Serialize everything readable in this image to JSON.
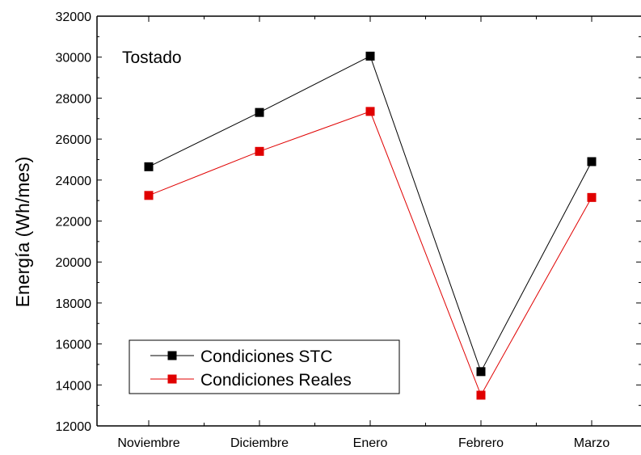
{
  "chart_data": {
    "type": "line",
    "title": "",
    "annotation": "Tostado",
    "xlabel": "",
    "ylabel": "Energía (Wh/mes)",
    "categories": [
      "Noviembre",
      "Diciembre",
      "Enero",
      "Febrero",
      "Marzo"
    ],
    "ylim": [
      12000,
      32000
    ],
    "yticks": [
      12000,
      14000,
      16000,
      18000,
      20000,
      22000,
      24000,
      26000,
      28000,
      30000,
      32000
    ],
    "grid": false,
    "legend_position": "bottom-left",
    "series": [
      {
        "name": "Condiciones STC",
        "color": "#000000",
        "marker": "square",
        "values": [
          24650,
          27300,
          30050,
          14650,
          24900
        ]
      },
      {
        "name": "Condiciones Reales",
        "color": "#e00000",
        "marker": "square",
        "values": [
          23250,
          25400,
          27350,
          13500,
          23150
        ]
      }
    ]
  }
}
